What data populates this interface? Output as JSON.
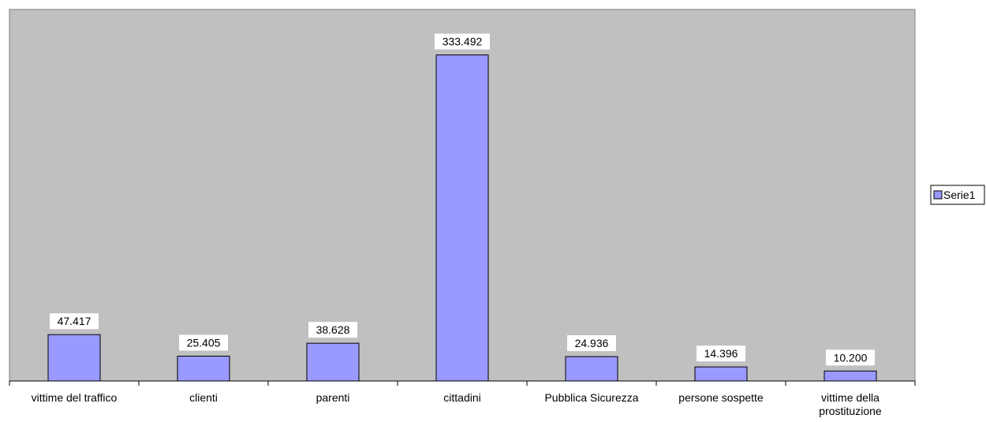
{
  "chart_data": {
    "type": "bar",
    "categories": [
      "vittime del traffico",
      "clienti",
      "parenti",
      "cittadini",
      "Pubblica Sicurezza",
      "persone sospette",
      [
        "vittime della",
        "prostituzione"
      ]
    ],
    "values": [
      47417,
      25405,
      38628,
      333492,
      24936,
      14396,
      10200
    ],
    "data_labels": [
      "47.417",
      "25.405",
      "38.628",
      "333.492",
      "24.936",
      "14.396",
      "10.200"
    ],
    "series": [
      {
        "name": "Serie1",
        "values": [
          47417,
          25405,
          38628,
          333492,
          24936,
          14396,
          10200
        ]
      }
    ],
    "title": "",
    "xlabel": "",
    "ylabel": "",
    "ylim": [
      0,
      380000
    ],
    "grid": false,
    "legend": "right",
    "colors": {
      "plot_background": "#c0c0c0",
      "bar_fill": "#9999ff",
      "bar_stroke": "#000000",
      "label_background": "#ffffff"
    }
  }
}
